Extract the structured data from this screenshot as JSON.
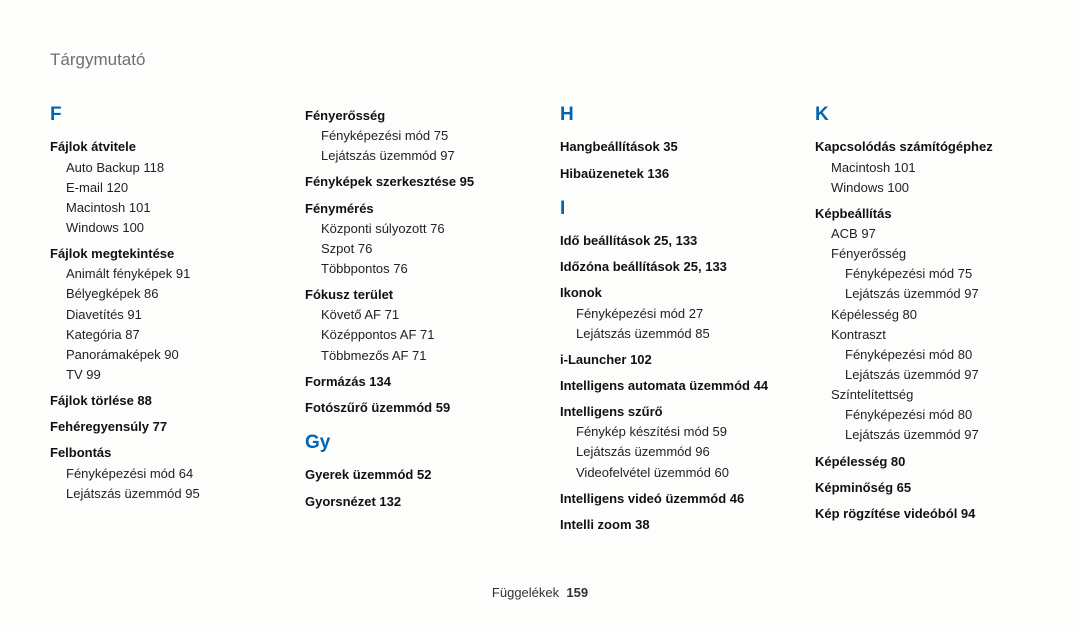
{
  "title": "Tárgymutató",
  "footer_label": "Függelékek",
  "footer_page": "159",
  "columns": [
    [
      {
        "type": "letter",
        "text": "F"
      },
      {
        "type": "topic",
        "text": "Fájlok átvitele"
      },
      {
        "type": "sub",
        "text": "Auto Backup  118"
      },
      {
        "type": "sub",
        "text": "E-mail  120"
      },
      {
        "type": "sub",
        "text": "Macintosh  101"
      },
      {
        "type": "sub",
        "text": "Windows  100"
      },
      {
        "type": "topic",
        "text": "Fájlok megtekintése"
      },
      {
        "type": "sub",
        "text": "Animált fényképek  91"
      },
      {
        "type": "sub",
        "text": "Bélyegképek  86"
      },
      {
        "type": "sub",
        "text": "Diavetítés  91"
      },
      {
        "type": "sub",
        "text": "Kategória  87"
      },
      {
        "type": "sub",
        "text": "Panorámaképek  90"
      },
      {
        "type": "sub",
        "text": "TV  99"
      },
      {
        "type": "topic",
        "text": "Fájlok törlése  88"
      },
      {
        "type": "topic",
        "text": "Fehéregyensúly  77"
      },
      {
        "type": "topic",
        "text": "Felbontás"
      },
      {
        "type": "sub",
        "text": "Fényképezési mód  64"
      },
      {
        "type": "sub",
        "text": "Lejátszás üzemmód  95"
      }
    ],
    [
      {
        "type": "topic",
        "text": "Fényerősség"
      },
      {
        "type": "sub",
        "text": "Fényképezési mód  75"
      },
      {
        "type": "sub",
        "text": "Lejátszás üzemmód  97"
      },
      {
        "type": "topic",
        "text": "Fényképek szerkesztése  95"
      },
      {
        "type": "topic",
        "text": "Fénymérés"
      },
      {
        "type": "sub",
        "text": "Központi súlyozott  76"
      },
      {
        "type": "sub",
        "text": "Szpot  76"
      },
      {
        "type": "sub",
        "text": "Többpontos  76"
      },
      {
        "type": "topic",
        "text": "Fókusz terület"
      },
      {
        "type": "sub",
        "text": "Követő AF  71"
      },
      {
        "type": "sub",
        "text": "Középpontos AF  71"
      },
      {
        "type": "sub",
        "text": "Többmezős AF  71"
      },
      {
        "type": "topic",
        "text": "Formázás  134"
      },
      {
        "type": "topic",
        "text": "Fotószűrő üzemmód  59"
      },
      {
        "type": "letter",
        "text": "Gy"
      },
      {
        "type": "topic",
        "text": "Gyerek üzemmód  52"
      },
      {
        "type": "topic",
        "text": "Gyorsnézet  132"
      }
    ],
    [
      {
        "type": "letter",
        "text": "H"
      },
      {
        "type": "topic",
        "text": "Hangbeállítások  35"
      },
      {
        "type": "topic",
        "text": "Hibaüzenetek  136"
      },
      {
        "type": "letter",
        "text": "I"
      },
      {
        "type": "topic",
        "text": "Idő beállítások  25, 133"
      },
      {
        "type": "topic",
        "text": "Időzóna beállítások  25, 133"
      },
      {
        "type": "topic",
        "text": "Ikonok"
      },
      {
        "type": "sub",
        "text": "Fényképezési mód  27"
      },
      {
        "type": "sub",
        "text": "Lejátszás üzemmód  85"
      },
      {
        "type": "topic",
        "text": "i-Launcher  102"
      },
      {
        "type": "topic",
        "text": "Intelligens automata üzemmód  44"
      },
      {
        "type": "topic",
        "text": "Intelligens szűrő"
      },
      {
        "type": "sub",
        "text": "Fénykép készítési mód  59"
      },
      {
        "type": "sub",
        "text": "Lejátszás üzemmód  96"
      },
      {
        "type": "sub",
        "text": "Videofelvétel üzemmód  60"
      },
      {
        "type": "topic",
        "text": "Intelligens videó üzemmód  46"
      },
      {
        "type": "topic",
        "text": "Intelli zoom  38"
      }
    ],
    [
      {
        "type": "letter",
        "text": "K"
      },
      {
        "type": "topic",
        "text": "Kapcsolódás számítógéphez"
      },
      {
        "type": "sub",
        "text": "Macintosh  101"
      },
      {
        "type": "sub",
        "text": "Windows  100"
      },
      {
        "type": "topic",
        "text": "Képbeállítás"
      },
      {
        "type": "sub",
        "text": "ACB  97"
      },
      {
        "type": "sub-head",
        "text": "Fényerősség"
      },
      {
        "type": "sub2",
        "text": "Fényképezési mód  75"
      },
      {
        "type": "sub2",
        "text": "Lejátszás üzemmód  97"
      },
      {
        "type": "sub",
        "text": "Képélesség  80"
      },
      {
        "type": "sub-head",
        "text": "Kontraszt"
      },
      {
        "type": "sub2",
        "text": "Fényképezési mód  80"
      },
      {
        "type": "sub2",
        "text": "Lejátszás üzemmód  97"
      },
      {
        "type": "sub-head",
        "text": "Színtelítettség"
      },
      {
        "type": "sub2",
        "text": "Fényképezési mód  80"
      },
      {
        "type": "sub2",
        "text": "Lejátszás üzemmód  97"
      },
      {
        "type": "topic",
        "text": "Képélesség  80"
      },
      {
        "type": "topic",
        "text": "Képminőség  65"
      },
      {
        "type": "topic",
        "text": "Kép rögzítése videóból  94"
      }
    ]
  ]
}
